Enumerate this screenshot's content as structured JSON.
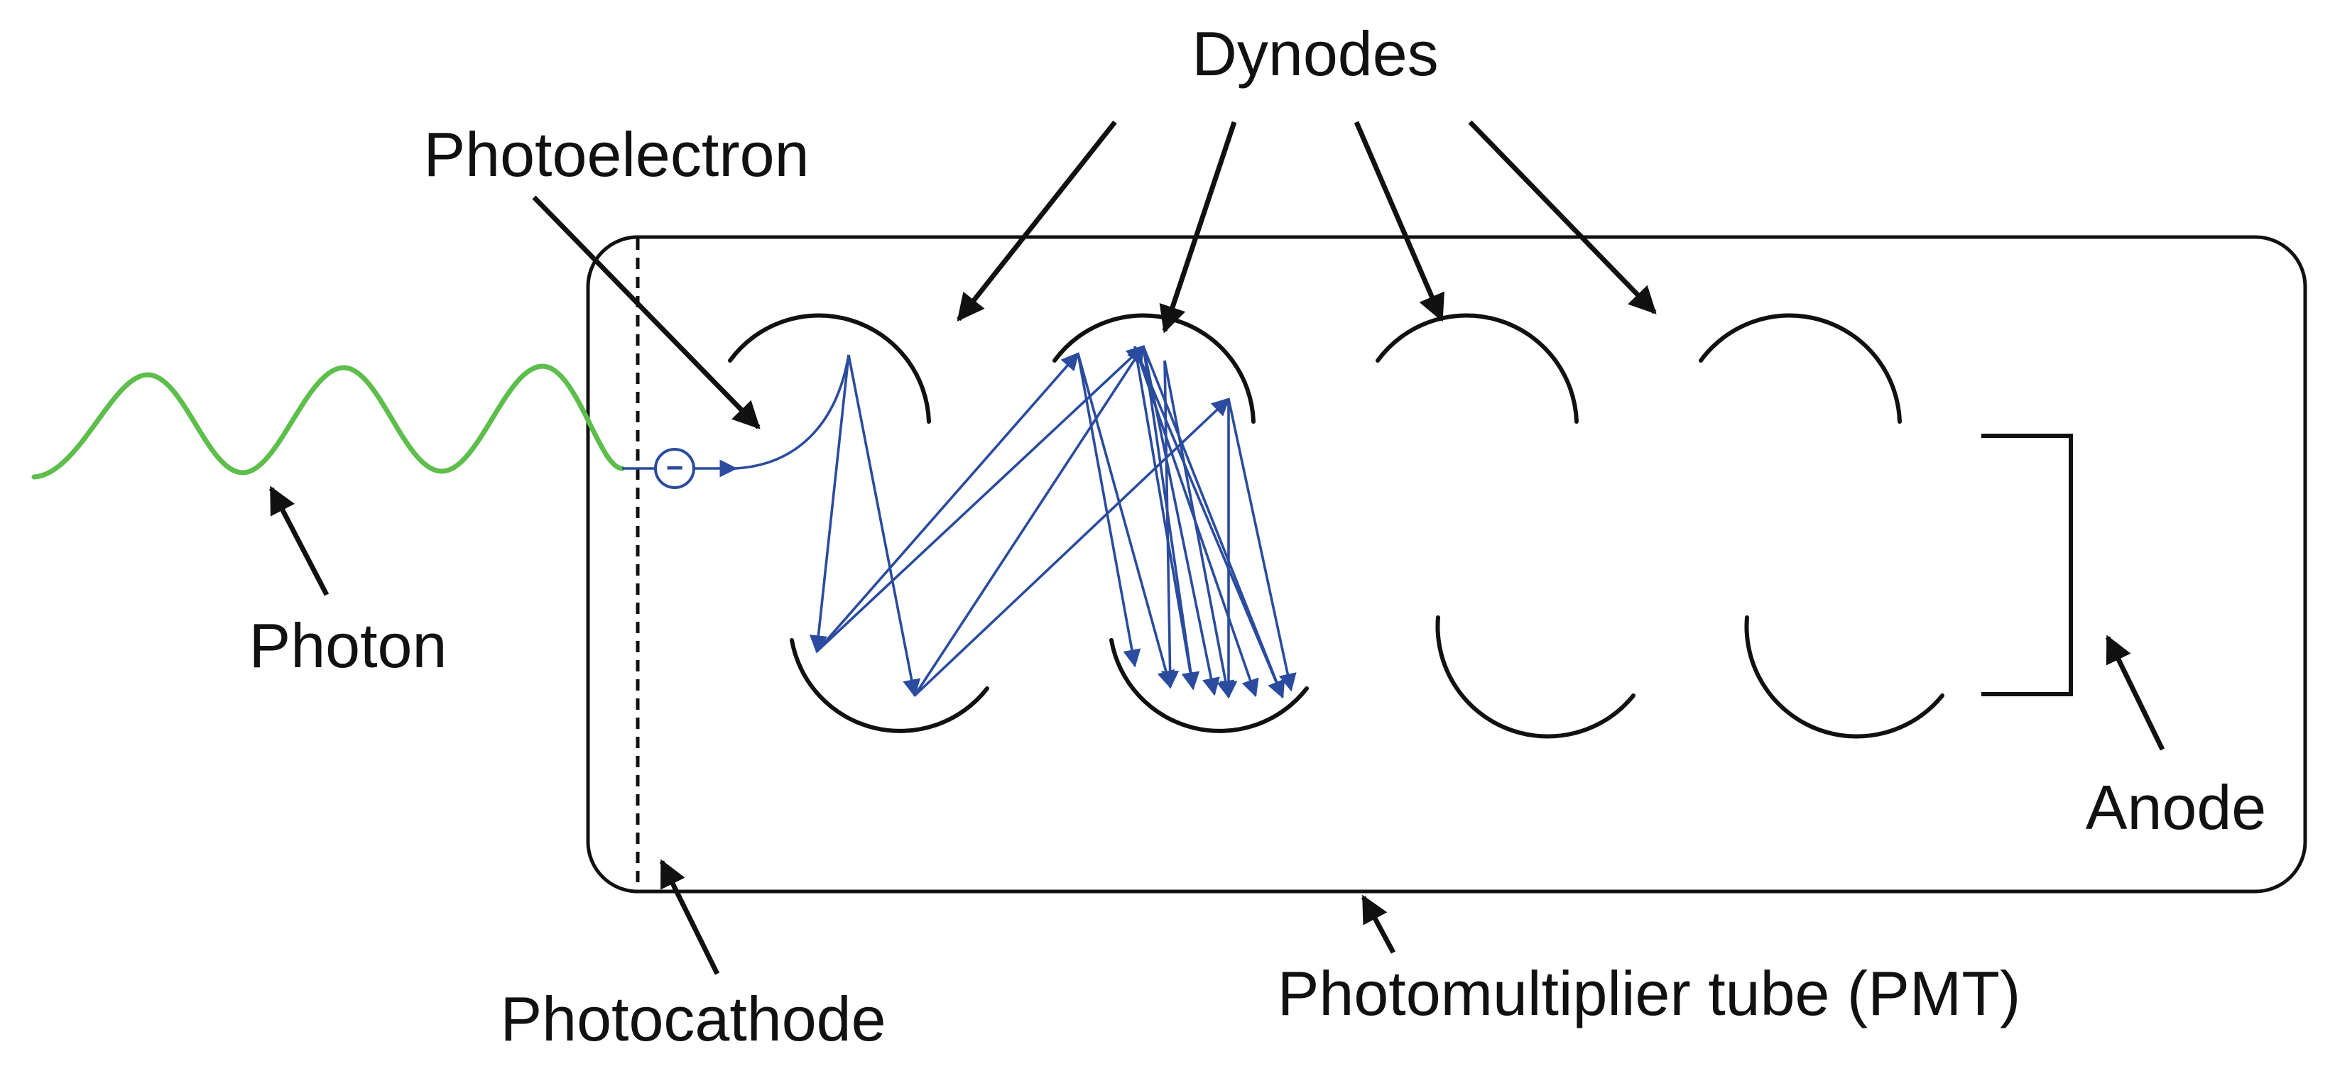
{
  "labels": {
    "dynodes": "Dynodes",
    "photoelectron": "Photoelectron",
    "photon": "Photon",
    "anode": "Anode",
    "photocathode": "Photocathode",
    "pmt": "Photomultiplier tube (PMT)"
  },
  "electron_symbol": "−",
  "colors": {
    "outline": "#111111",
    "photon_wave": "#5dbe4b",
    "electron_path": "#2b4c9e",
    "label_text": "#111111"
  }
}
